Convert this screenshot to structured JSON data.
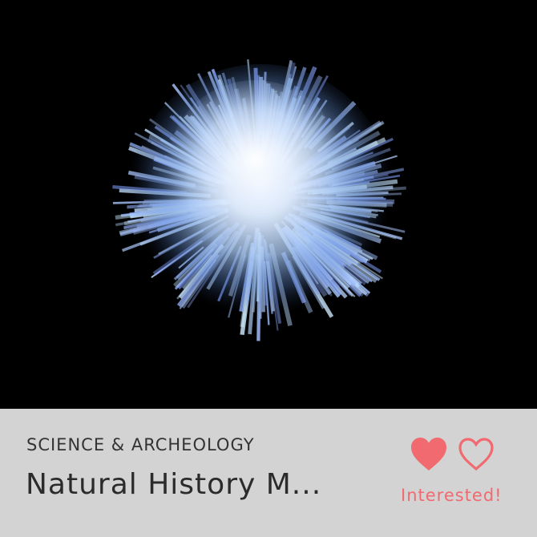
{
  "card": {
    "category": "SCIENCE & ARCHEOLOGY",
    "title": "Natural History M...",
    "status": "Interested!"
  },
  "image": {
    "subject-icon": "crystal-cluster-icon"
  },
  "actions": {
    "primary_icon": "heart-filled-icon",
    "secondary_icon": "heart-outline-icon"
  },
  "colors": {
    "accent": "#f06a6f",
    "footer_bg": "#d3d3d3",
    "text": "#2b2b2b",
    "image_bg": "#000000"
  }
}
